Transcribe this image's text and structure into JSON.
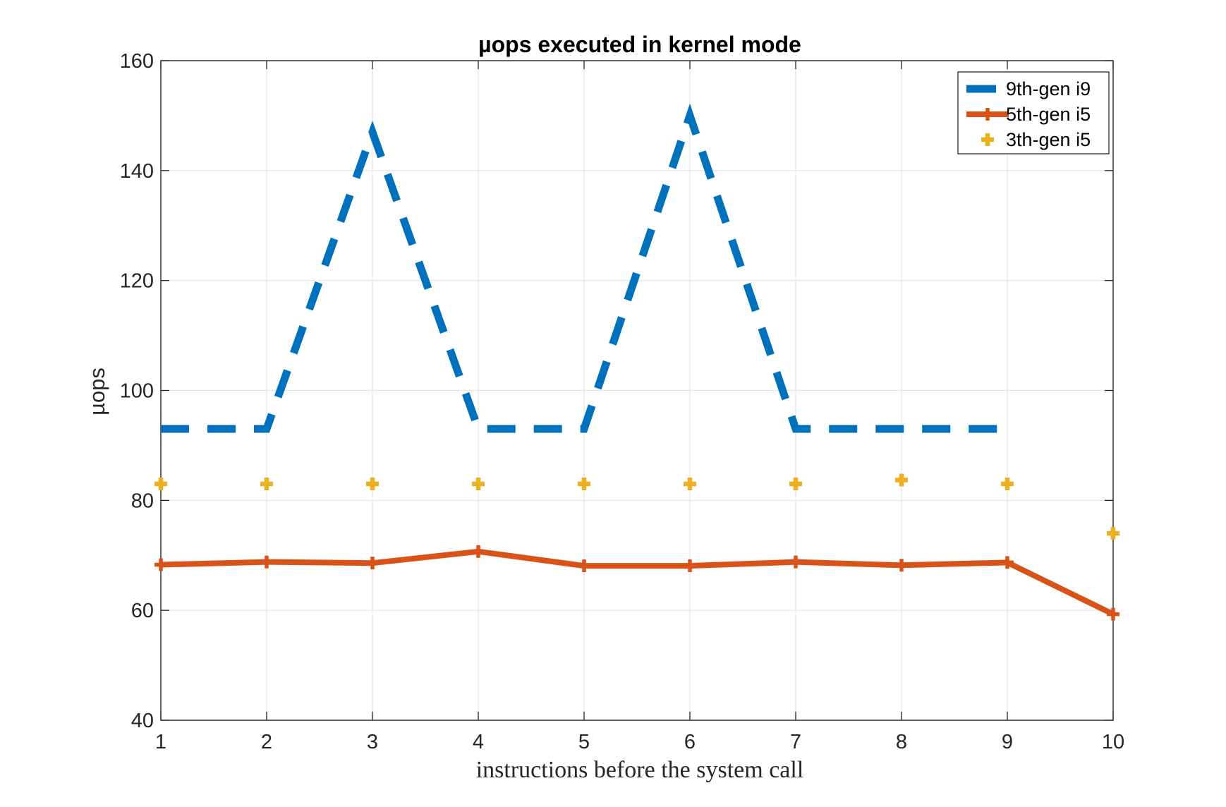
{
  "chart_data": {
    "type": "line",
    "title": "µops executed in kernel mode",
    "xlabel": "instructions before the system call",
    "ylabel": "µops",
    "xlim": [
      1,
      10
    ],
    "ylim": [
      40,
      160
    ],
    "xticks": [
      1,
      2,
      3,
      4,
      5,
      6,
      7,
      8,
      9,
      10
    ],
    "yticks": [
      40,
      60,
      80,
      100,
      120,
      140,
      160
    ],
    "grid": true,
    "legend_position": "top-right",
    "series": [
      {
        "name": "9th-gen i9",
        "style": "dashed-line",
        "color": "#0072BD",
        "x": [
          1,
          2,
          3,
          4,
          5,
          6,
          7,
          8,
          9
        ],
        "values": [
          93,
          93,
          147,
          93,
          93,
          150,
          93,
          93,
          93
        ]
      },
      {
        "name": "5th-gen i5",
        "style": "line-with-plus-markers",
        "color": "#D95319",
        "x": [
          1,
          2,
          3,
          4,
          5,
          6,
          7,
          8,
          9,
          10
        ],
        "values": [
          68.3,
          68.8,
          68.6,
          70.7,
          68.1,
          68.1,
          68.8,
          68.2,
          68.7,
          59.3
        ]
      },
      {
        "name": "3th-gen i5",
        "style": "plus-markers-only",
        "color": "#EDB120",
        "x": [
          1,
          2,
          3,
          4,
          5,
          6,
          7,
          8,
          9,
          10
        ],
        "values": [
          83,
          83,
          83,
          83,
          83,
          83,
          83,
          83.7,
          83,
          74
        ]
      }
    ]
  }
}
